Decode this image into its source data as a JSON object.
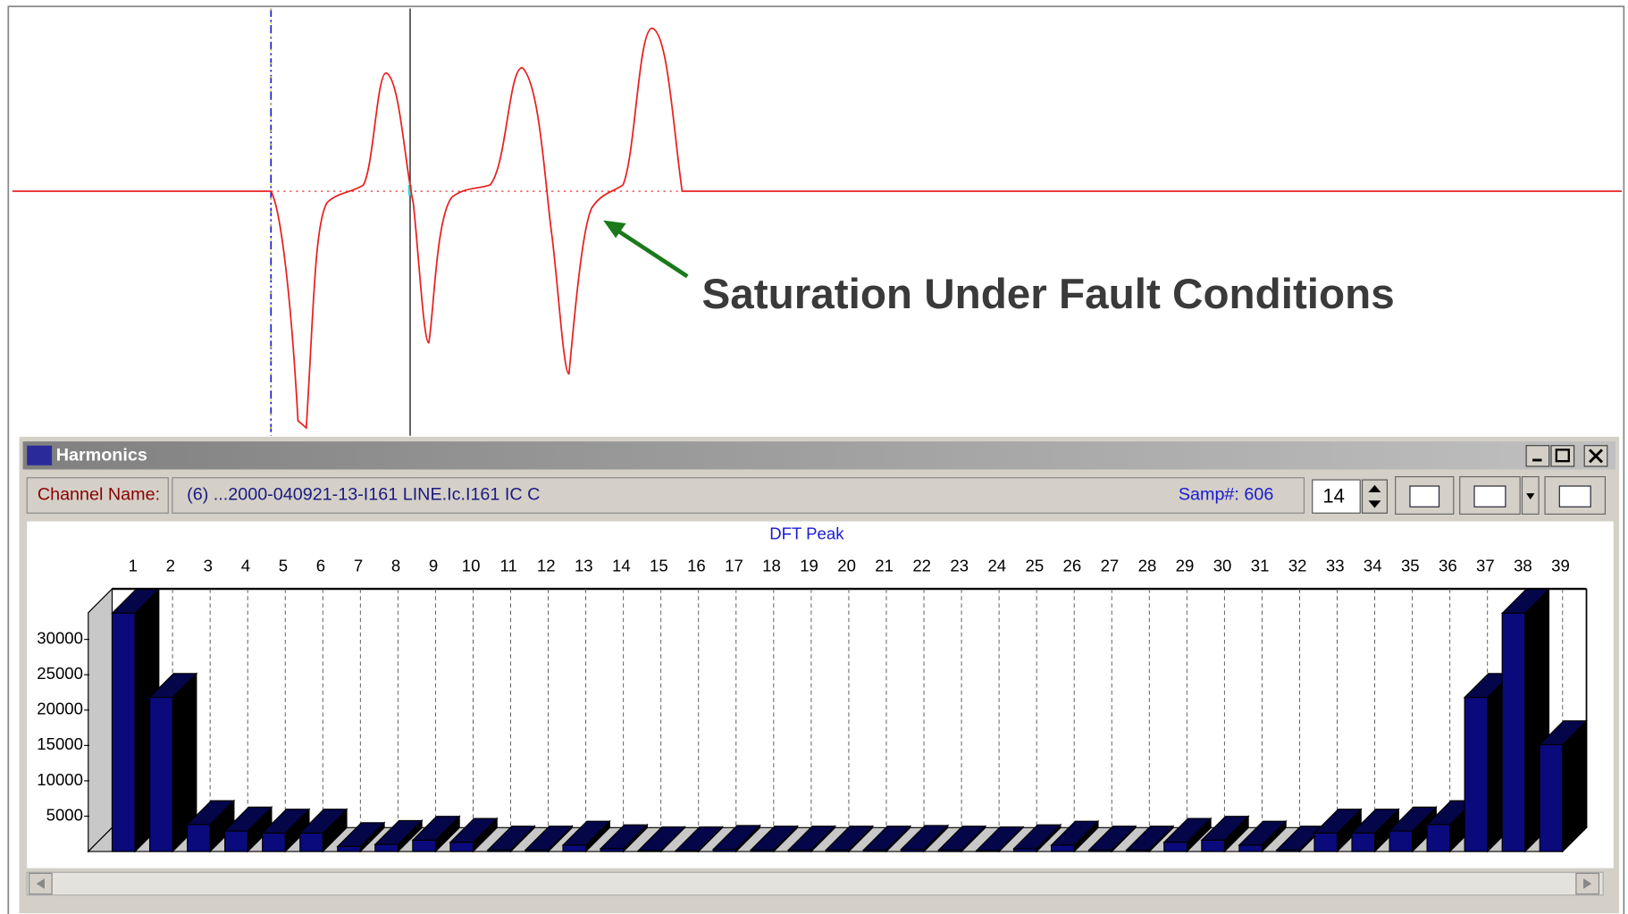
{
  "annotation": "Saturation Under Fault Conditions",
  "window": {
    "title": "Harmonics",
    "channel_label": "Channel Name:",
    "channel_value": "(6)  ...2000-040921-13-I161 LINE.Ic.I161 IC C",
    "sample": "Samp#: 606",
    "spin": "14"
  },
  "chart_data": {
    "type": "bar",
    "title": "DFT Peak",
    "categories": [
      "1",
      "2",
      "3",
      "4",
      "5",
      "6",
      "7",
      "8",
      "9",
      "10",
      "11",
      "12",
      "13",
      "14",
      "15",
      "16",
      "17",
      "18",
      "19",
      "20",
      "21",
      "22",
      "23",
      "24",
      "25",
      "26",
      "27",
      "28",
      "29",
      "30",
      "31",
      "32",
      "33",
      "34",
      "35",
      "36",
      "37",
      "38",
      "39"
    ],
    "values": [
      33700,
      21800,
      3800,
      2900,
      2600,
      2600,
      700,
      1000,
      1600,
      1300,
      200,
      200,
      900,
      400,
      100,
      100,
      300,
      200,
      200,
      200,
      200,
      300,
      200,
      100,
      400,
      900,
      200,
      200,
      1300,
      1600,
      900,
      200,
      2600,
      2600,
      2900,
      3800,
      21800,
      33700,
      15100
    ],
    "color": "#0a0a7c",
    "ylim": [
      0,
      37000
    ],
    "yticks": [
      5000,
      10000,
      15000,
      20000,
      25000,
      30000
    ]
  }
}
